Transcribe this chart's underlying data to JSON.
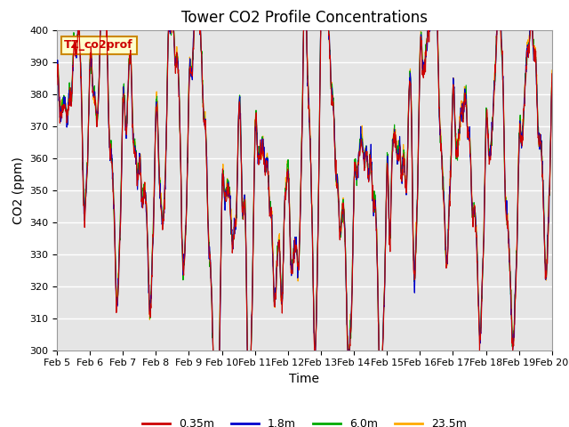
{
  "title": "Tower CO2 Profile Concentrations",
  "xlabel": "Time",
  "ylabel": "CO2 (ppm)",
  "ylim": [
    300,
    400
  ],
  "yticks": [
    300,
    310,
    320,
    330,
    340,
    350,
    360,
    370,
    380,
    390,
    400
  ],
  "label_text": "TZ_co2prof",
  "legend_labels": [
    "0.35m",
    "1.8m",
    "6.0m",
    "23.5m"
  ],
  "legend_colors": [
    "#cc0000",
    "#0000cc",
    "#00aa00",
    "#ffaa00"
  ],
  "bg_color": "#e5e5e5",
  "fig_bg": "#ffffff",
  "n_points": 1500,
  "title_fontsize": 12,
  "label_fontsize": 9,
  "tick_fontsize": 8
}
